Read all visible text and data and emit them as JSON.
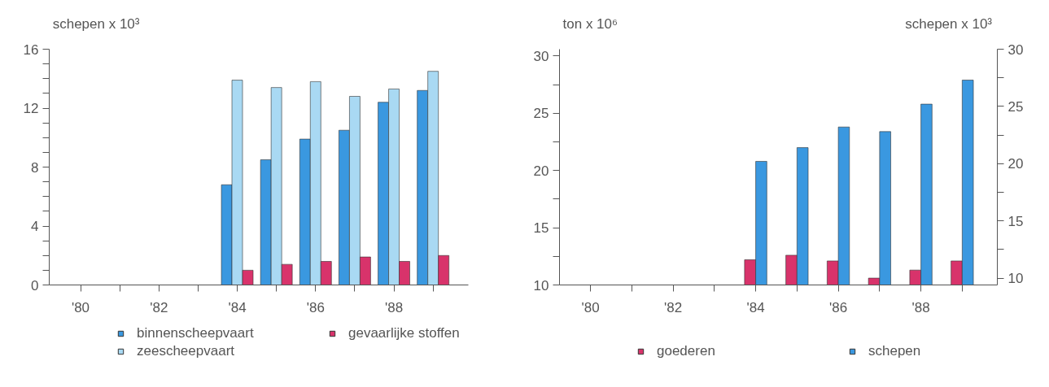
{
  "chart_data": [
    {
      "type": "bar",
      "ylabel": "schepen x 10³",
      "x": [
        1984,
        1985,
        1986,
        1987,
        1988,
        1989
      ],
      "series": [
        {
          "name": "binnenscheepvaart",
          "color": "#3a98e0",
          "values": [
            6.8,
            8.5,
            9.9,
            10.5,
            12.4,
            13.2
          ]
        },
        {
          "name": "zeescheepvaart",
          "color": "#a9d9f3",
          "values": [
            13.9,
            13.4,
            13.8,
            12.8,
            13.3,
            14.5
          ]
        },
        {
          "name": "gevaarlijke stoffen",
          "color": "#d8336b",
          "values": [
            1.0,
            1.4,
            1.6,
            1.9,
            1.6,
            2.0
          ]
        }
      ],
      "xlim": [
        1979.2,
        1989.9
      ],
      "xticks": [
        {
          "value": 1980,
          "label": "'80"
        },
        {
          "value": 1981,
          "label": null
        },
        {
          "value": 1982,
          "label": "'82"
        },
        {
          "value": 1983,
          "label": null
        },
        {
          "value": 1984,
          "label": "'84"
        },
        {
          "value": 1985,
          "label": null
        },
        {
          "value": 1986,
          "label": "'86"
        },
        {
          "value": 1987,
          "label": null
        },
        {
          "value": 1988,
          "label": "'88"
        },
        {
          "value": 1989,
          "label": null
        }
      ],
      "ylim": [
        0,
        16
      ],
      "yticks": [
        0,
        {
          "value": 1,
          "label": null
        },
        {
          "value": 2,
          "label": null
        },
        {
          "value": 3,
          "label": null
        },
        4,
        {
          "value": 5,
          "label": null
        },
        {
          "value": 6,
          "label": null
        },
        {
          "value": 7,
          "label": null
        },
        8,
        {
          "value": 9,
          "label": null
        },
        {
          "value": 10,
          "label": null
        },
        {
          "value": 11,
          "label": null
        },
        12,
        {
          "value": 13,
          "label": null
        },
        {
          "value": 14,
          "label": null
        },
        {
          "value": 15,
          "label": null
        },
        16
      ],
      "grid": false,
      "legend": "bottom"
    },
    {
      "type": "bar",
      "ylabel": "ton x 10⁶",
      "y2label": "schepen x 10³",
      "x": [
        1984,
        1985,
        1986,
        1987,
        1988,
        1989
      ],
      "series": [
        {
          "name": "goederen",
          "color": "#d8336b",
          "values": [
            12.2,
            12.6,
            12.1,
            10.6,
            11.3,
            12.1
          ]
        },
        {
          "name": "schepen",
          "color": "#3a98e0",
          "values": [
            20.2,
            21.4,
            23.2,
            22.8,
            25.2,
            27.3
          ],
          "axis": "y2"
        }
      ],
      "xlim": [
        1979.25,
        1989.85
      ],
      "xticks": [
        {
          "value": 1980,
          "label": "'80"
        },
        {
          "value": 1981,
          "label": null
        },
        {
          "value": 1982,
          "label": "'82"
        },
        {
          "value": 1983,
          "label": null
        },
        {
          "value": 1984,
          "label": "'84"
        },
        {
          "value": 1985,
          "label": null
        },
        {
          "value": 1986,
          "label": "'86"
        },
        {
          "value": 1987,
          "label": null
        },
        {
          "value": 1988,
          "label": "'88"
        },
        {
          "value": 1989,
          "label": null
        }
      ],
      "ylim": [
        10,
        30.6
      ],
      "yticks": [
        10,
        {
          "value": 12.5,
          "label": null
        },
        15,
        {
          "value": 17.5,
          "label": null
        },
        20,
        {
          "value": 22.5,
          "label": null
        },
        25,
        {
          "value": 27.5,
          "label": null
        },
        30
      ],
      "y2lim": [
        9.4,
        30
      ],
      "y2ticks": [
        10,
        {
          "value": 12.5,
          "label": null
        },
        15,
        {
          "value": 17.5,
          "label": null
        },
        20,
        {
          "value": 22.5,
          "label": null
        },
        25,
        {
          "value": 27.5,
          "label": null
        },
        30
      ],
      "grid": false,
      "legend": "bottom"
    }
  ]
}
